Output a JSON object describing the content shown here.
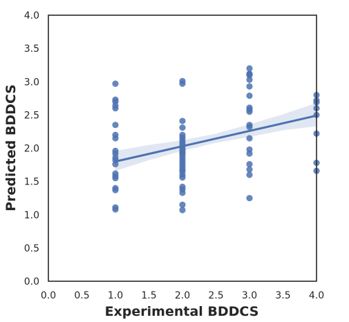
{
  "chart_data": {
    "type": "scatter",
    "title": "",
    "xlabel": "Experimental BDDCS",
    "ylabel": "Predicted BDDCS",
    "xlim": [
      0.0,
      4.0
    ],
    "ylim": [
      0.0,
      4.0
    ],
    "xticks": [
      "0.0",
      "0.5",
      "1.0",
      "1.5",
      "2.0",
      "2.5",
      "3.0",
      "3.5",
      "4.0"
    ],
    "yticks": [
      "0.0",
      "0.5",
      "1.0",
      "1.5",
      "2.0",
      "2.5",
      "3.0",
      "3.5",
      "4.0"
    ],
    "grid": false,
    "colors": {
      "points": "#4c72b0",
      "regression_line": "#4c72b0",
      "confidence_band": "#4c72b0",
      "axes": "#262626"
    },
    "series": [
      {
        "kind": "points",
        "x": [
          1,
          1,
          1,
          1,
          1,
          1,
          1,
          1,
          1,
          1,
          1,
          1,
          1,
          1,
          1,
          1,
          1,
          1,
          1,
          1,
          2,
          2,
          2,
          2,
          2,
          2,
          2,
          2,
          2,
          2,
          2,
          2,
          2,
          2,
          2,
          2,
          2,
          2,
          2,
          2,
          2,
          2,
          2,
          2,
          2,
          2,
          2,
          3,
          3,
          3,
          3,
          3,
          3,
          3,
          3,
          3,
          3,
          3,
          3,
          3,
          3,
          3,
          3,
          3,
          3,
          3,
          4,
          4,
          4,
          4,
          4,
          4,
          4,
          4
        ],
        "y": [
          2.97,
          2.73,
          2.7,
          2.64,
          2.6,
          2.35,
          2.2,
          2.15,
          1.96,
          1.92,
          1.86,
          1.82,
          1.76,
          1.62,
          1.58,
          1.55,
          1.4,
          1.37,
          1.11,
          1.08,
          3.01,
          2.97,
          2.41,
          2.31,
          2.2,
          2.16,
          2.08,
          2.04,
          2.0,
          1.97,
          1.92,
          1.88,
          1.84,
          1.8,
          1.76,
          1.72,
          1.68,
          1.65,
          1.6,
          1.56,
          1.42,
          1.38,
          1.33,
          1.15,
          1.07,
          2.12,
          1.94,
          3.2,
          3.12,
          3.1,
          3.03,
          2.93,
          2.79,
          2.61,
          2.58,
          2.55,
          2.35,
          2.32,
          2.15,
          1.98,
          1.92,
          1.76,
          1.68,
          1.6,
          1.25,
          3.11,
          2.8,
          2.72,
          2.69,
          2.6,
          2.5,
          2.22,
          1.78,
          1.66
        ]
      },
      {
        "kind": "regression",
        "x": [
          1.0,
          4.0
        ],
        "y": [
          1.8,
          2.49
        ]
      },
      {
        "kind": "confidence_band",
        "x": [
          1.0,
          1.5,
          2.0,
          2.5,
          3.0,
          3.5,
          4.0
        ],
        "lower": [
          1.66,
          1.82,
          1.96,
          2.08,
          2.17,
          2.27,
          2.33
        ],
        "upper": [
          1.96,
          2.05,
          2.12,
          2.22,
          2.36,
          2.51,
          2.68
        ]
      }
    ]
  }
}
